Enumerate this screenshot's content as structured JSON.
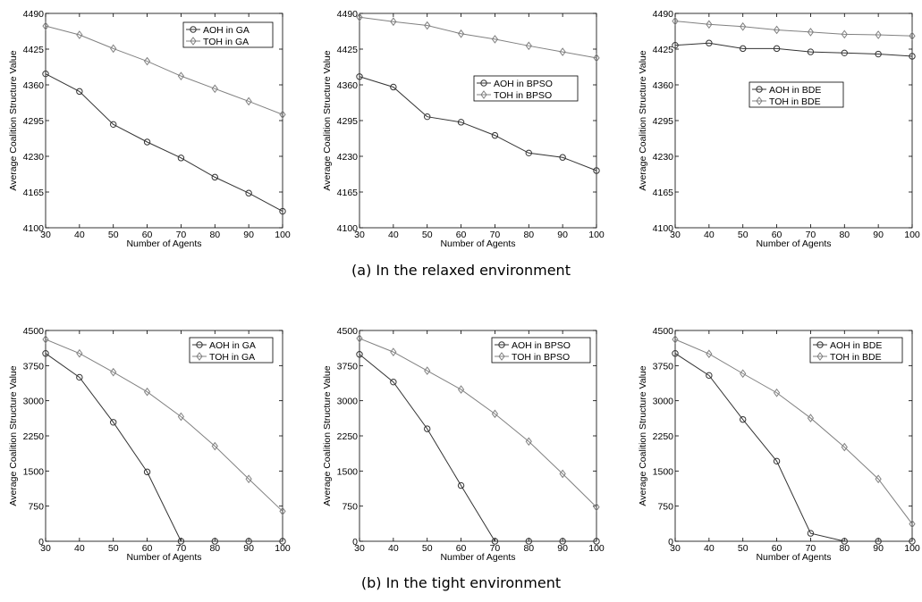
{
  "captions": {
    "a": "(a) In the relaxed environment",
    "b": "(b) In the tight environment"
  },
  "colors": {
    "aoh": "#333333",
    "toh": "#808080",
    "axis": "#000000"
  },
  "chart_data": [
    {
      "type": "line",
      "xlabel": "Number of Agents",
      "ylabel": "Average Coalition Structure Value",
      "x": [
        30,
        40,
        50,
        60,
        70,
        80,
        90,
        100
      ],
      "xlim": [
        30,
        100
      ],
      "ylim": [
        4100,
        4490
      ],
      "yticks": [
        4100,
        4165,
        4230,
        4295,
        4360,
        4425,
        4490
      ],
      "grid": false,
      "legend_position": "top-right",
      "series": [
        {
          "name": "AOH in GA",
          "marker": "circle",
          "values": [
            4380,
            4348,
            4288,
            4256,
            4227,
            4192,
            4163,
            4130
          ]
        },
        {
          "name": "TOH in GA",
          "marker": "diamond",
          "values": [
            4467,
            4451,
            4426,
            4403,
            4376,
            4353,
            4330,
            4306
          ]
        }
      ]
    },
    {
      "type": "line",
      "xlabel": "Number of Agents",
      "ylabel": "Average Coalition Structure Value",
      "x": [
        30,
        40,
        50,
        60,
        70,
        80,
        90,
        100
      ],
      "xlim": [
        30,
        100
      ],
      "ylim": [
        4100,
        4490
      ],
      "yticks": [
        4100,
        4165,
        4230,
        4295,
        4360,
        4425,
        4490
      ],
      "grid": false,
      "legend_position": "middle-right",
      "series": [
        {
          "name": "AOH in BPSO",
          "marker": "circle",
          "values": [
            4375,
            4356,
            4302,
            4292,
            4268,
            4236,
            4228,
            4204
          ]
        },
        {
          "name": "TOH in BPSO",
          "marker": "diamond",
          "values": [
            4483,
            4475,
            4468,
            4453,
            4443,
            4431,
            4420,
            4409
          ]
        }
      ]
    },
    {
      "type": "line",
      "xlabel": "Number of Agents",
      "ylabel": "Average Coalition Structure Value",
      "x": [
        30,
        40,
        50,
        60,
        70,
        80,
        90,
        100
      ],
      "xlim": [
        30,
        100
      ],
      "ylim": [
        4100,
        4490
      ],
      "yticks": [
        4100,
        4165,
        4230,
        4295,
        4360,
        4425,
        4490
      ],
      "grid": false,
      "legend_position": "middle-center",
      "series": [
        {
          "name": "AOH in BDE",
          "marker": "circle",
          "values": [
            4432,
            4436,
            4426,
            4426,
            4420,
            4418,
            4416,
            4412
          ]
        },
        {
          "name": "TOH in BDE",
          "marker": "diamond",
          "values": [
            4476,
            4470,
            4466,
            4460,
            4456,
            4452,
            4451,
            4449
          ]
        }
      ]
    },
    {
      "type": "line",
      "xlabel": "Number of Agents",
      "ylabel": "Average Coalition Structure Value",
      "x": [
        30,
        40,
        50,
        60,
        70,
        80,
        90,
        100
      ],
      "xlim": [
        30,
        100
      ],
      "ylim": [
        0,
        4500
      ],
      "yticks": [
        0,
        750,
        1500,
        2250,
        3000,
        3750,
        4500
      ],
      "grid": false,
      "legend_position": "top-right",
      "series": [
        {
          "name": "AOH in GA",
          "marker": "circle",
          "values": [
            4010,
            3500,
            2540,
            1480,
            0,
            0,
            0,
            0
          ]
        },
        {
          "name": "TOH in GA",
          "marker": "diamond",
          "values": [
            4310,
            4010,
            3610,
            3190,
            2660,
            2030,
            1330,
            640
          ]
        }
      ]
    },
    {
      "type": "line",
      "xlabel": "Number of Agents",
      "ylabel": "Average Coalition Structure Value",
      "x": [
        30,
        40,
        50,
        60,
        70,
        80,
        90,
        100
      ],
      "xlim": [
        30,
        100
      ],
      "ylim": [
        0,
        4500
      ],
      "yticks": [
        0,
        750,
        1500,
        2250,
        3000,
        3750,
        4500
      ],
      "grid": false,
      "legend_position": "top-right",
      "series": [
        {
          "name": "AOH in BPSO",
          "marker": "circle",
          "values": [
            3990,
            3400,
            2400,
            1190,
            0,
            0,
            0,
            0
          ]
        },
        {
          "name": "TOH in BPSO",
          "marker": "diamond",
          "values": [
            4330,
            4040,
            3640,
            3240,
            2720,
            2130,
            1440,
            730
          ]
        }
      ]
    },
    {
      "type": "line",
      "xlabel": "Number of Agents",
      "ylabel": "Average Coalition Structure Value",
      "x": [
        30,
        40,
        50,
        60,
        70,
        80,
        90,
        100
      ],
      "xlim": [
        30,
        100
      ],
      "ylim": [
        0,
        4500
      ],
      "yticks": [
        0,
        750,
        1500,
        2250,
        3000,
        3750,
        4500
      ],
      "grid": false,
      "legend_position": "top-right",
      "series": [
        {
          "name": "AOH in BDE",
          "marker": "circle",
          "values": [
            4010,
            3540,
            2600,
            1710,
            170,
            0,
            0,
            0
          ]
        },
        {
          "name": "TOH in BDE",
          "marker": "diamond",
          "values": [
            4310,
            4000,
            3580,
            3170,
            2630,
            2010,
            1330,
            370
          ]
        }
      ]
    }
  ]
}
